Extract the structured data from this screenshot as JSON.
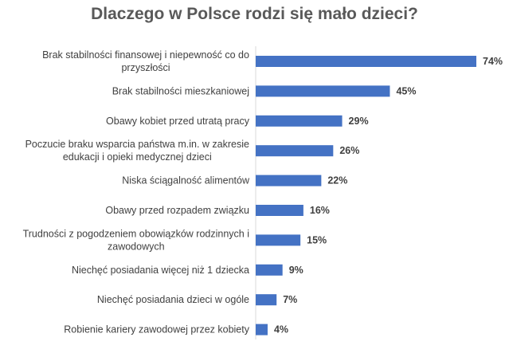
{
  "chart_data": {
    "type": "bar",
    "orientation": "horizontal",
    "title": "Dlaczego w Polsce rodzi się mało dzieci?",
    "categories": [
      [
        "Brak stabilności finansowej i niepewność co do",
        "przyszłości"
      ],
      [
        "Brak stabilności mieszkaniowej"
      ],
      [
        "Obawy kobiet przed utratą pracy"
      ],
      [
        "Poczucie braku wsparcia państwa m.in. w zakresie",
        "edukacji i opieki medycznej dzieci"
      ],
      [
        "Niska ściągalność alimentów"
      ],
      [
        "Obawy przed rozpadem związku"
      ],
      [
        "Trudności z pogodzeniem obowiązków rodzinnych i",
        "zawodowych"
      ],
      [
        "Niechęć posiadania więcej niż 1 dziecka"
      ],
      [
        "Niechęć posiadania dzieci w ogóle"
      ],
      [
        "Robienie kariery zawodowej przez kobiety"
      ]
    ],
    "values": [
      74,
      45,
      29,
      26,
      22,
      16,
      15,
      9,
      7,
      4
    ],
    "value_labels": [
      "74%",
      "45%",
      "29%",
      "26%",
      "22%",
      "16%",
      "15%",
      "9%",
      "7%",
      "4%"
    ],
    "unit": "%",
    "xlim": [
      0,
      74
    ],
    "grid": false,
    "legend": "none",
    "bar_color": "#4472C4",
    "axis_color": "#D9D9D9"
  }
}
